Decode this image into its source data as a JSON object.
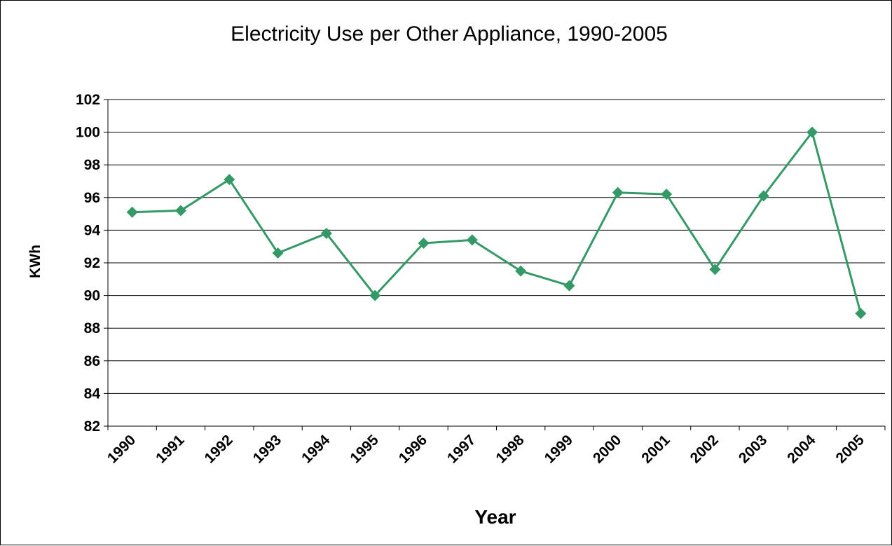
{
  "chart_data": {
    "type": "line",
    "title": "Electricity Use per Other Appliance, 1990-2005",
    "xlabel": "Year",
    "ylabel": "KWh",
    "categories": [
      "1990",
      "1991",
      "1992",
      "1993",
      "1994",
      "1995",
      "1996",
      "1997",
      "1998",
      "1999",
      "2000",
      "2001",
      "2002",
      "2003",
      "2004",
      "2005"
    ],
    "series": [
      {
        "values": [
          95.1,
          95.2,
          97.1,
          92.6,
          93.8,
          90.0,
          93.2,
          93.4,
          91.5,
          90.6,
          96.3,
          96.2,
          91.6,
          96.1,
          100.0,
          88.9
        ]
      }
    ],
    "ylim": [
      82,
      102
    ],
    "yticks": [
      "82",
      "84",
      "86",
      "88",
      "90",
      "92",
      "94",
      "96",
      "98",
      "100",
      "102"
    ],
    "grid": true,
    "legend": "none",
    "colors": {
      "series": "#339966",
      "grid": "#000000"
    }
  }
}
